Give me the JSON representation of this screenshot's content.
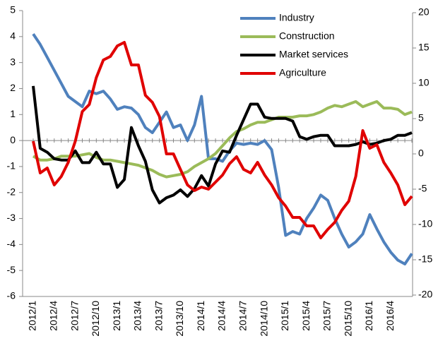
{
  "chart_data": {
    "type": "line",
    "categories": [
      "2012/1",
      null,
      null,
      "2012/4",
      null,
      null,
      "2012/7",
      null,
      null,
      "2012/10",
      null,
      null,
      "2013/1",
      null,
      null,
      "2013/4",
      null,
      null,
      "2013/7",
      null,
      null,
      "2013/10",
      null,
      null,
      "2014/1",
      null,
      null,
      "2014/4",
      null,
      null,
      "2014/7",
      null,
      null,
      "2014/10",
      null,
      null,
      "2015/1",
      null,
      null,
      "2015/4",
      null,
      null,
      "2015/7",
      null,
      null,
      "2015/10",
      null,
      null,
      "2016/1",
      null,
      null,
      "2016/4",
      null,
      null,
      null
    ],
    "series": [
      {
        "name": "Industry",
        "color": "#4f81bd",
        "axis": "y",
        "values": [
          4.1,
          3.7,
          3.2,
          2.7,
          2.2,
          1.7,
          1.5,
          1.3,
          1.9,
          1.8,
          1.9,
          1.6,
          1.2,
          1.3,
          1.25,
          1.0,
          0.5,
          0.3,
          0.7,
          1.1,
          0.5,
          0.6,
          0.0,
          0.6,
          1.7,
          -0.7,
          -0.7,
          -0.8,
          -0.4,
          -0.1,
          -0.15,
          -0.1,
          -0.15,
          0.0,
          -0.35,
          -1.8,
          -3.65,
          -3.5,
          -3.6,
          -3.0,
          -2.6,
          -2.1,
          -2.3,
          -3.0,
          -3.6,
          -4.1,
          -3.9,
          -3.6,
          -2.85,
          -3.4,
          -3.9,
          -4.3,
          -4.6,
          -4.75,
          -4.35
        ]
      },
      {
        "name": "Construction",
        "color": "#9bbb59",
        "axis": "y",
        "values": [
          -0.6,
          -0.75,
          -0.75,
          -0.7,
          -0.6,
          -0.6,
          -0.6,
          -0.55,
          -0.5,
          -0.65,
          -0.75,
          -0.75,
          -0.8,
          -0.85,
          -0.9,
          -0.95,
          -1.05,
          -1.15,
          -1.3,
          -1.4,
          -1.35,
          -1.3,
          -1.2,
          -1.0,
          -0.85,
          -0.7,
          -0.5,
          -0.2,
          0.1,
          0.35,
          0.45,
          0.6,
          0.7,
          0.7,
          0.8,
          0.9,
          0.9,
          0.9,
          0.95,
          0.95,
          1.0,
          1.1,
          1.25,
          1.35,
          1.3,
          1.4,
          1.5,
          1.3,
          1.4,
          1.5,
          1.25,
          1.25,
          1.2,
          1.0,
          1.1
        ]
      },
      {
        "name": "Market services",
        "color": "#000000",
        "axis": "y",
        "values": [
          2.1,
          -0.3,
          -0.45,
          -0.7,
          -0.75,
          -0.75,
          -0.4,
          -0.85,
          -0.85,
          -0.45,
          -0.9,
          -0.9,
          -1.8,
          -1.5,
          0.5,
          -0.2,
          -0.8,
          -1.9,
          -2.4,
          -2.2,
          -2.1,
          -1.9,
          -2.15,
          -1.85,
          -1.35,
          -1.75,
          -0.9,
          -0.4,
          -0.45,
          0.2,
          0.8,
          1.4,
          1.4,
          0.9,
          0.85,
          0.85,
          0.85,
          0.75,
          0.15,
          0.05,
          0.15,
          0.2,
          0.2,
          -0.2,
          -0.2,
          -0.2,
          -0.15,
          -0.05,
          -0.15,
          -0.1,
          0.0,
          0.05,
          0.2,
          0.2,
          0.3
        ]
      },
      {
        "name": "Agriculture",
        "color": "#e00000",
        "axis": "y2",
        "values": [
          1.8,
          -2.7,
          -2.0,
          -4.4,
          -3.2,
          -1.2,
          1.8,
          6,
          7,
          10.8,
          13.3,
          13.8,
          15.3,
          15.8,
          12.6,
          12.6,
          8.3,
          7.3,
          5.3,
          0,
          0,
          -2.2,
          -4.4,
          -5.2,
          -4.7,
          -5,
          -4,
          -3,
          -1.4,
          -0.4,
          -2.2,
          -2.7,
          -1.2,
          -3,
          -4.4,
          -6.2,
          -7.4,
          -9,
          -9,
          -10.2,
          -10.2,
          -11.9,
          -10.7,
          -9.7,
          -8,
          -6.7,
          -3.2,
          3.3,
          0.8,
          1.3,
          -1.2,
          -2.7,
          -4.4,
          -7.2,
          -6.0
        ]
      }
    ],
    "ylim": [
      -6,
      5
    ],
    "yticks": [
      -6,
      -5,
      -4,
      -3,
      -2,
      -1,
      0,
      1,
      2,
      3,
      4,
      5
    ],
    "y2lim": [
      -20,
      20
    ],
    "y2ticks": [
      -20,
      -15,
      -10,
      -5,
      0,
      5,
      10,
      15,
      20
    ],
    "legend": "top-right"
  }
}
